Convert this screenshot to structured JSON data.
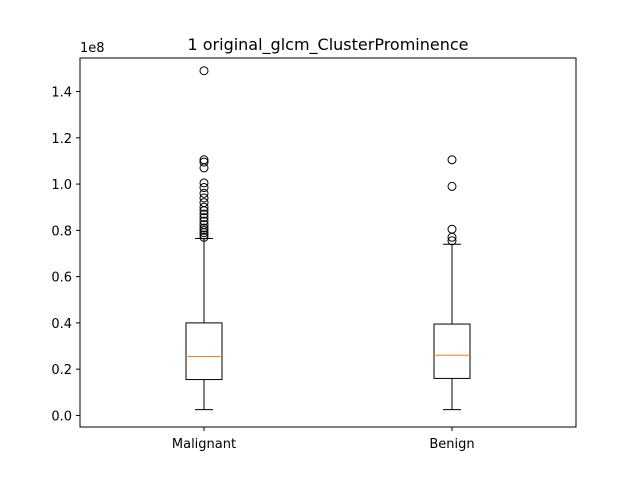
{
  "chart_data": {
    "type": "box",
    "title": "1 original_glcm_ClusterProminence",
    "offset_text": "1e8",
    "categories": [
      "Malignant",
      "Benign"
    ],
    "ylim": [
      -0.05,
      1.545
    ],
    "yticks": [
      0.0,
      0.2,
      0.4,
      0.6,
      0.8,
      1.0,
      1.2,
      1.4
    ],
    "ytick_labels": [
      "0.0",
      "0.2",
      "0.4",
      "0.6",
      "0.8",
      "1.0",
      "1.2",
      "1.4"
    ],
    "grid": false,
    "colors": {
      "box": "#000000",
      "median": "#ff7f0e",
      "flier": "#000000"
    },
    "boxes": [
      {
        "name": "Malignant",
        "whisker_low": 0.025,
        "q1": 0.155,
        "median": 0.255,
        "q3": 0.4,
        "whisker_high": 0.765,
        "fliers": [
          0.77,
          0.78,
          0.79,
          0.8,
          0.81,
          0.825,
          0.84,
          0.855,
          0.87,
          0.885,
          0.9,
          0.92,
          0.94,
          0.96,
          0.985,
          1.005,
          1.07,
          1.095,
          1.105,
          1.49
        ]
      },
      {
        "name": "Benign",
        "whisker_low": 0.025,
        "q1": 0.16,
        "median": 0.26,
        "q3": 0.395,
        "whisker_high": 0.74,
        "fliers": [
          0.755,
          0.77,
          0.805,
          0.99,
          1.105
        ]
      }
    ]
  }
}
